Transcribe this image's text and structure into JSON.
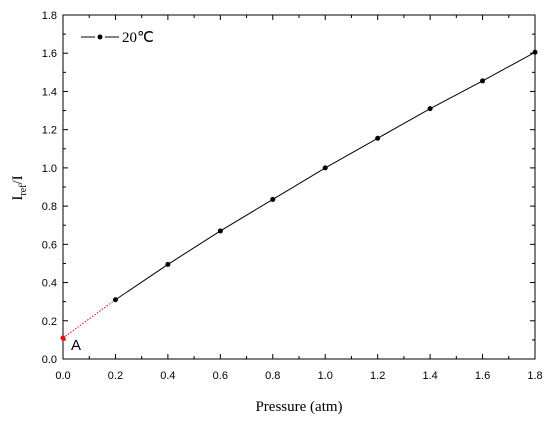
{
  "chart_data": {
    "type": "line",
    "title": "",
    "xlabel": "Pressure (atm)",
    "ylabel_main": "I",
    "ylabel_sub": "ref",
    "ylabel_tail": "/I",
    "xlim": [
      0.0,
      1.8
    ],
    "ylim": [
      0.0,
      1.8
    ],
    "x_ticks": [
      "0.0",
      "0.2",
      "0.4",
      "0.6",
      "0.8",
      "1.0",
      "1.2",
      "1.4",
      "1.6",
      "1.8"
    ],
    "y_ticks": [
      "0.0",
      "0.2",
      "0.4",
      "0.6",
      "0.8",
      "1.0",
      "1.2",
      "1.4",
      "1.6",
      "1.8"
    ],
    "grid": false,
    "legend_position": "top-left",
    "series": [
      {
        "name": "20℃",
        "color": "#000000",
        "marker": "circle",
        "x": [
          0.2,
          0.4,
          0.6,
          0.8,
          1.0,
          1.2,
          1.4,
          1.6,
          1.8
        ],
        "y": [
          0.31,
          0.495,
          0.67,
          0.835,
          1.0,
          1.155,
          1.31,
          1.455,
          1.605
        ]
      }
    ],
    "extrapolation": {
      "color": "#ff0000",
      "style": "dotted",
      "x": [
        0.0,
        0.2
      ],
      "y": [
        0.11,
        0.31
      ]
    },
    "annotation": {
      "text": "A",
      "x": 0.0,
      "y": 0.11
    }
  }
}
